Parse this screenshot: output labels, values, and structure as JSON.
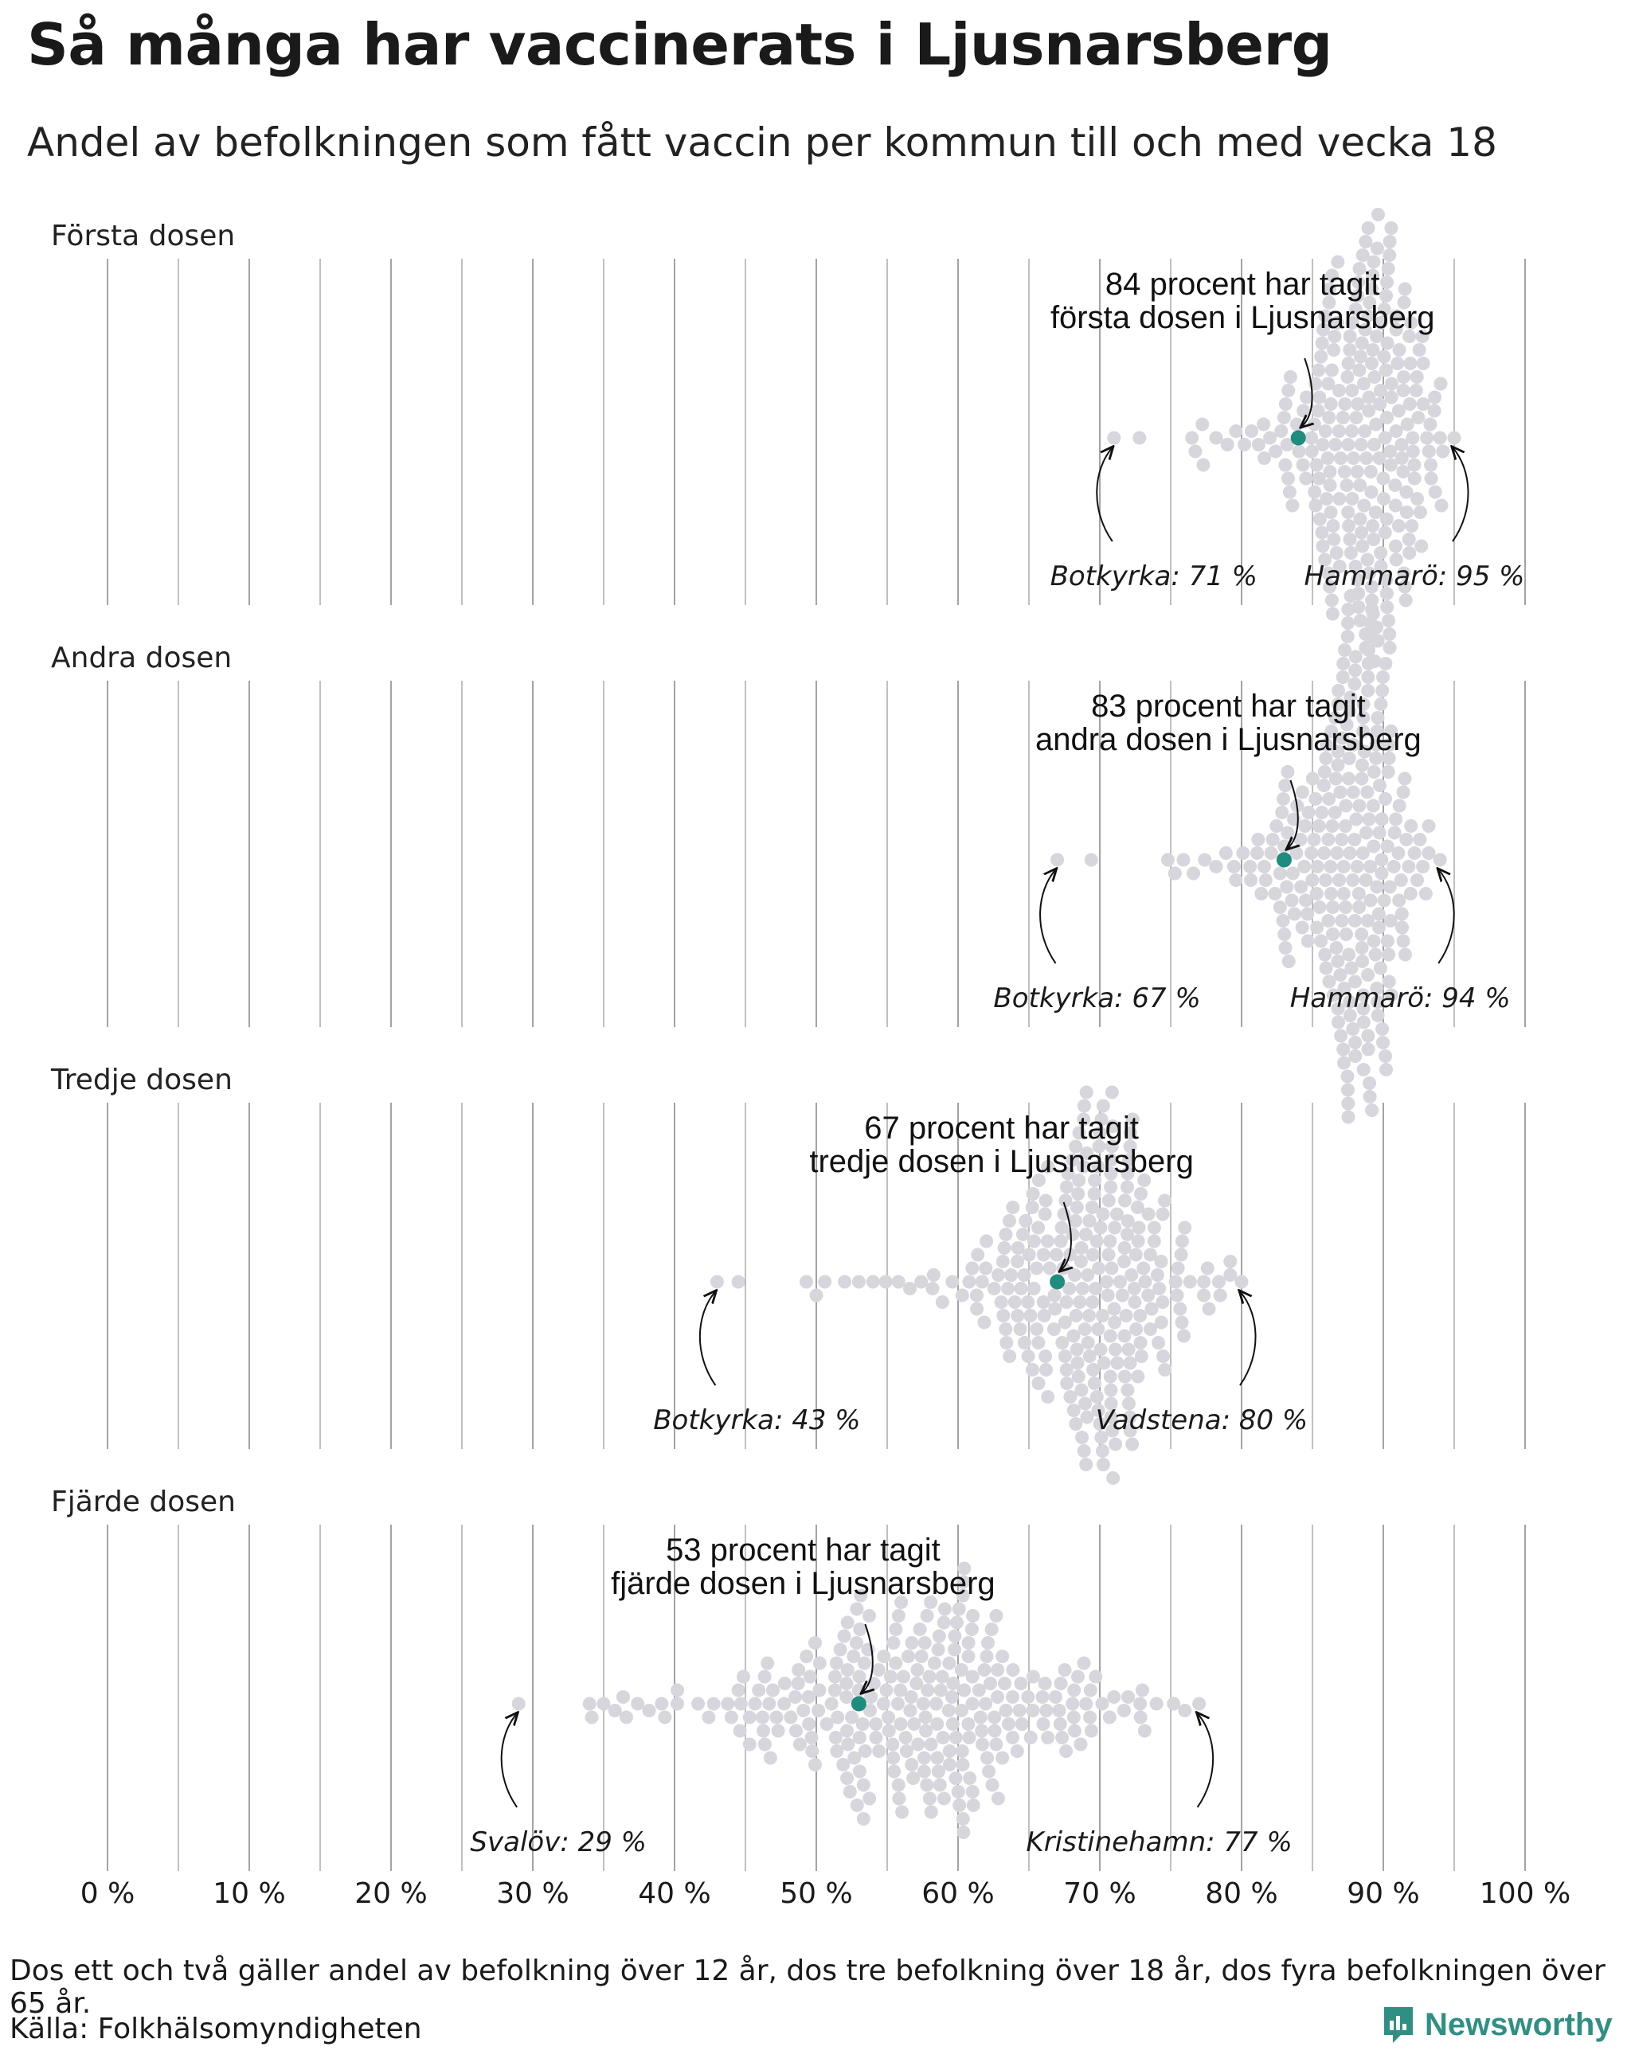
{
  "title": "Så många har vaccinerats i Ljusnarsberg",
  "subtitle": "Andel av befolkningen som fått vaccin per kommun till och med vecka 18",
  "footnote": "Dos ett och två gäller andel av befolkning över 12 år, dos tre befolkning över 18 år, dos fyra befolkningen över 65 år.",
  "source": "Källa: Folkhälsomyndigheten",
  "brand": "Newsworthy",
  "colors": {
    "highlight": "#1e8c7e",
    "dots": "#d6d6dc",
    "grid": "#8c8c8c",
    "brand": "#2f8f82"
  },
  "chart_data": {
    "type": "scatter",
    "subtype": "beeswarm",
    "xlim": [
      0,
      100
    ],
    "grid": "vertical lines every 5 %",
    "x_ticks": [
      "0 %",
      "10 %",
      "20 %",
      "30 %",
      "40 %",
      "50 %",
      "60 %",
      "70 %",
      "80 %",
      "90 %",
      "100 %"
    ],
    "panels": [
      {
        "label": "Första dosen",
        "highlight": {
          "value": 84,
          "line1": "84 procent har tagit",
          "line2": "första dosen i Ljusnarsberg"
        },
        "min": {
          "label": "Botkyrka: 71 %",
          "value": 71
        },
        "max": {
          "label": "Hammarö: 95 %",
          "value": 95
        },
        "distribution": {
          "center": 89,
          "spread_left": 2.8,
          "spread_right": 2.3,
          "count": 230,
          "sparse": [
            72.8,
            76.5,
            77.3,
            78.2,
            79.0,
            79.6,
            80.2,
            80.7,
            81.2,
            81.6,
            82.0,
            82.4,
            82.8,
            83.3,
            85.2,
            94.0
          ]
        }
      },
      {
        "label": "Andra dosen",
        "highlight": {
          "value": 83,
          "line1": "83 procent har tagit",
          "line2": "andra dosen i Ljusnarsberg"
        },
        "min": {
          "label": "Botkyrka: 67 %",
          "value": 67
        },
        "max": {
          "label": "Hammarö: 94 %",
          "value": 94
        },
        "distribution": {
          "center": 87.5,
          "spread_left": 2.8,
          "spread_right": 2.5,
          "count": 240,
          "sparse": [
            69.4,
            74.8,
            75.3,
            75.9,
            76.6,
            77.4,
            78.2,
            78.9,
            79.6,
            80.1,
            80.6,
            81.1,
            81.6,
            82.2,
            93.0
          ]
        }
      },
      {
        "label": "Tredje dosen",
        "highlight": {
          "value": 67,
          "line1": "67 procent har tagit",
          "line2": "tredje dosen i Ljusnarsberg"
        },
        "min": {
          "label": "Botkyrka: 43 %",
          "value": 43
        },
        "max": {
          "label": "Vadstena: 80 %",
          "value": 80
        },
        "distribution": {
          "center": 69.5,
          "spread_left": 4.2,
          "spread_right": 3.6,
          "count": 240,
          "sparse": [
            44.5,
            49.3,
            50.0,
            50.6,
            52.0,
            53.0,
            54.0,
            54.9,
            55.8,
            56.6,
            57.4,
            58.2,
            58.9,
            59.6,
            60.3,
            61.0,
            61.7,
            77.6,
            78.4,
            79.2
          ]
        }
      },
      {
        "label": "Fjärde dosen",
        "highlight": {
          "value": 53,
          "line1": "53 procent har tagit",
          "line2": "fjärde dosen i Ljusnarsberg"
        },
        "min": {
          "label": "Svalöv: 29 %",
          "value": 29
        },
        "max": {
          "label": "Kristinehamn: 77 %",
          "value": 77
        },
        "distribution": {
          "center": 57,
          "spread_left": 7.0,
          "spread_right": 6.5,
          "count": 260,
          "sparse": [
            34.0,
            35.0,
            35.8,
            36.6,
            37.4,
            38.2,
            71.0,
            72.0,
            73.0,
            74.0,
            75.2,
            76.0
          ]
        }
      }
    ]
  }
}
